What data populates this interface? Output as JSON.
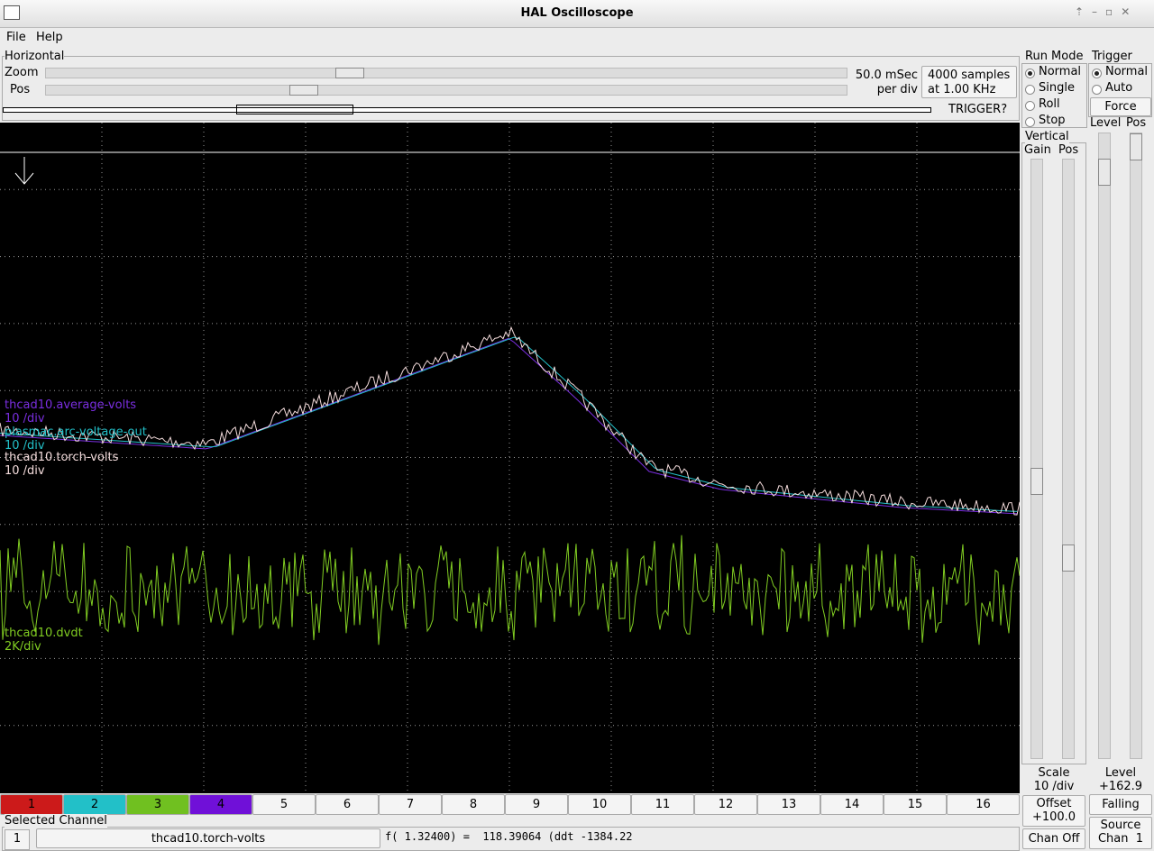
{
  "window": {
    "title": "HAL Oscilloscope"
  },
  "menu": [
    "File",
    "Help"
  ],
  "horizontal": {
    "title": "Horizontal",
    "zoom_label": "Zoom",
    "pos_label": "Pos",
    "rate": [
      "50.0 mSec",
      "per div"
    ],
    "samples": [
      "4000 samples",
      "at 1.00 KHz"
    ],
    "trigger_status": "TRIGGER?"
  },
  "run_mode": {
    "title": "Run Mode",
    "options": [
      "Normal",
      "Single",
      "Roll",
      "Stop"
    ],
    "selected": 0
  },
  "trigger": {
    "title": "Trigger",
    "options": [
      "Normal",
      "Auto"
    ],
    "selected": 0,
    "force": "Force",
    "level_label": "Level",
    "pos_label": "Pos",
    "level_title": "Level",
    "level_value": "+162.9",
    "edge": "Falling",
    "source_title": "Source",
    "source_value": "Chan  1"
  },
  "vertical": {
    "title": "Vertical",
    "gain_label": "Gain",
    "pos_label": "Pos",
    "scale_title": "Scale",
    "scale_value": "10 /div",
    "offset_title": "Offset",
    "offset_value": "+100.0",
    "chan_off": "Chan Off"
  },
  "traces": [
    {
      "name": "thcad10.average-volts",
      "scale": "10 /div",
      "color": "#7a2ee0"
    },
    {
      "name": "plasmac.arc-voltage-out",
      "scale": "10 /div",
      "color": "#22c0c8"
    },
    {
      "name": "thcad10.torch-volts",
      "scale": "10 /div",
      "color": "#f4dcdc"
    },
    {
      "name": "thcad10.dvdt",
      "scale": "2K/div",
      "color": "#80cc22"
    }
  ],
  "channels": [
    {
      "label": "1",
      "color": "#cc1a1a"
    },
    {
      "label": "2",
      "color": "#22c0c8"
    },
    {
      "label": "3",
      "color": "#70c020"
    },
    {
      "label": "4",
      "color": "#7010d8"
    },
    {
      "label": "5"
    },
    {
      "label": "6"
    },
    {
      "label": "7"
    },
    {
      "label": "8"
    },
    {
      "label": "9"
    },
    {
      "label": "10"
    },
    {
      "label": "11"
    },
    {
      "label": "12"
    },
    {
      "label": "13"
    },
    {
      "label": "14"
    },
    {
      "label": "15"
    },
    {
      "label": "16"
    }
  ],
  "selected_channel": {
    "title": "Selected Channel",
    "number": "1",
    "name": "thcad10.torch-volts",
    "readout": "f( 1.32400) =  118.39064 (ddt -1384.22"
  }
}
